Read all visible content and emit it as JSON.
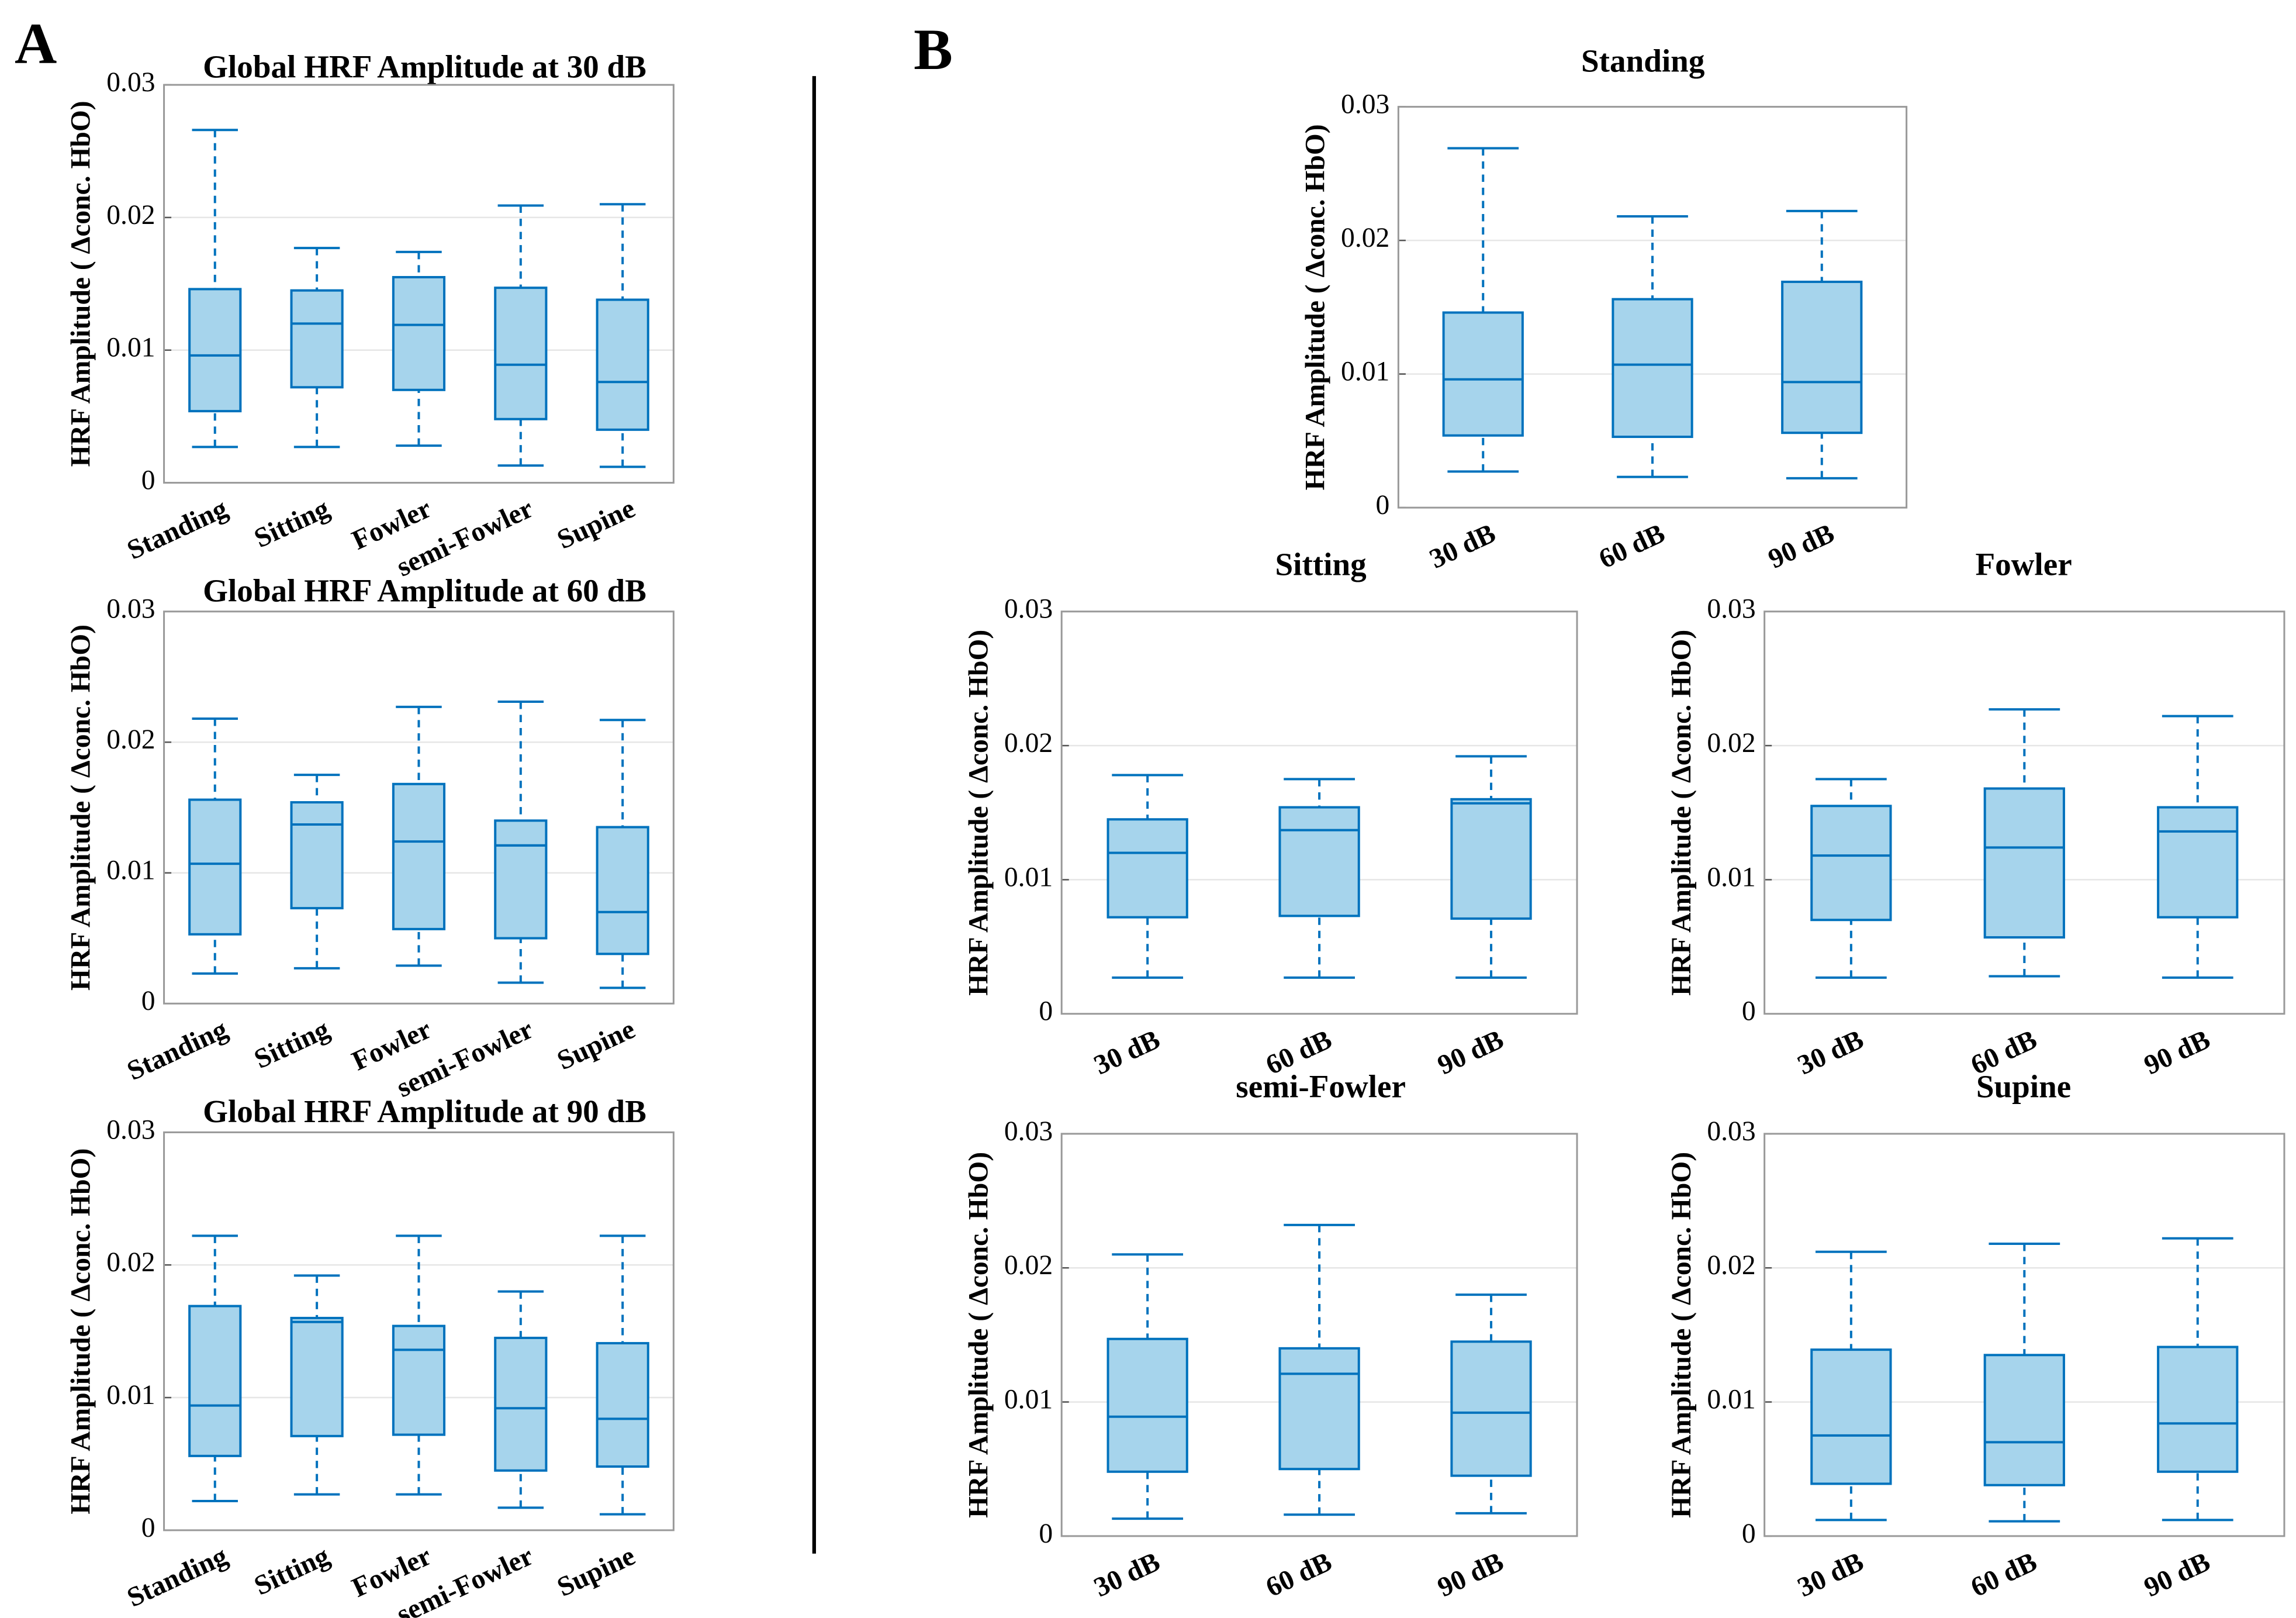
{
  "panels": [
    "A",
    "B"
  ],
  "chart_data": [
    {
      "type": "box",
      "title": "Global HRF Amplitude at 30 dB",
      "ylabel": "HRF Amplitude ( Δconc. HbO)",
      "categories": [
        "Standing",
        "Sitting",
        "Fowler",
        "semi-Fowler",
        "Supine"
      ],
      "boxes": [
        {
          "min": 0.0027,
          "q1": 0.0054,
          "median": 0.0096,
          "q3": 0.0146,
          "max": 0.0266
        },
        {
          "min": 0.0027,
          "q1": 0.0072,
          "median": 0.012,
          "q3": 0.0145,
          "max": 0.0177
        },
        {
          "min": 0.0028,
          "q1": 0.007,
          "median": 0.0119,
          "q3": 0.0155,
          "max": 0.0174
        },
        {
          "min": 0.0013,
          "q1": 0.0048,
          "median": 0.0089,
          "q3": 0.0147,
          "max": 0.0209
        },
        {
          "min": 0.0012,
          "q1": 0.004,
          "median": 0.0076,
          "q3": 0.0138,
          "max": 0.021
        }
      ],
      "color": "#0072bd",
      "fill": "#a6d4ec",
      "ylim": [
        0,
        0.03
      ],
      "yticks": [
        0,
        0.01,
        0.02,
        0.03
      ],
      "grid": true
    },
    {
      "type": "box",
      "title": "Global HRF Amplitude at 60 dB",
      "ylabel": "HRF Amplitude ( Δconc. HbO)",
      "categories": [
        "Standing",
        "Sitting",
        "Fowler",
        "semi-Fowler",
        "Supine"
      ],
      "boxes": [
        {
          "min": 0.0023,
          "q1": 0.0053,
          "median": 0.0107,
          "q3": 0.0156,
          "max": 0.0218
        },
        {
          "min": 0.0027,
          "q1": 0.0073,
          "median": 0.0137,
          "q3": 0.0154,
          "max": 0.0175
        },
        {
          "min": 0.0029,
          "q1": 0.0057,
          "median": 0.0124,
          "q3": 0.0168,
          "max": 0.0227
        },
        {
          "min": 0.0016,
          "q1": 0.005,
          "median": 0.0121,
          "q3": 0.014,
          "max": 0.0231
        },
        {
          "min": 0.0012,
          "q1": 0.0038,
          "median": 0.007,
          "q3": 0.0135,
          "max": 0.0217
        }
      ],
      "color": "#0072bd",
      "fill": "#a6d4ec",
      "ylim": [
        0,
        0.03
      ],
      "yticks": [
        0,
        0.01,
        0.02,
        0.03
      ],
      "grid": true
    },
    {
      "type": "box",
      "title": "Global HRF Amplitude at 90 dB",
      "ylabel": "HRF Amplitude ( Δconc. HbO)",
      "categories": [
        "Standing",
        "Sitting",
        "Fowler",
        "semi-Fowler",
        "Supine"
      ],
      "boxes": [
        {
          "min": 0.0022,
          "q1": 0.0056,
          "median": 0.0094,
          "q3": 0.0169,
          "max": 0.0222
        },
        {
          "min": 0.0027,
          "q1": 0.0071,
          "median": 0.0157,
          "q3": 0.016,
          "max": 0.0192
        },
        {
          "min": 0.0027,
          "q1": 0.0072,
          "median": 0.0136,
          "q3": 0.0154,
          "max": 0.0222
        },
        {
          "min": 0.0017,
          "q1": 0.0045,
          "median": 0.0092,
          "q3": 0.0145,
          "max": 0.018
        },
        {
          "min": 0.0012,
          "q1": 0.0048,
          "median": 0.0084,
          "q3": 0.0141,
          "max": 0.0222
        }
      ],
      "color": "#0072bd",
      "fill": "#a6d4ec",
      "ylim": [
        0,
        0.03
      ],
      "yticks": [
        0,
        0.01,
        0.02,
        0.03
      ],
      "grid": true
    },
    {
      "type": "box",
      "title": "Standing",
      "ylabel": "HRF Amplitude ( Δconc. HbO)",
      "categories": [
        "30 dB",
        "60 dB",
        "90 dB"
      ],
      "boxes": [
        {
          "min": 0.0027,
          "q1": 0.0054,
          "median": 0.0096,
          "q3": 0.0146,
          "max": 0.0269
        },
        {
          "min": 0.0023,
          "q1": 0.0053,
          "median": 0.0107,
          "q3": 0.0156,
          "max": 0.0218
        },
        {
          "min": 0.0022,
          "q1": 0.0056,
          "median": 0.0094,
          "q3": 0.0169,
          "max": 0.0222
        }
      ],
      "color": "#0072bd",
      "fill": "#a6d4ec",
      "ylim": [
        0,
        0.03
      ],
      "yticks": [
        0,
        0.01,
        0.02,
        0.03
      ],
      "grid": true
    },
    {
      "type": "box",
      "title": "Sitting",
      "ylabel": "HRF Amplitude ( Δconc. HbO)",
      "categories": [
        "30 dB",
        "60 dB",
        "90 dB"
      ],
      "boxes": [
        {
          "min": 0.0027,
          "q1": 0.0072,
          "median": 0.012,
          "q3": 0.0145,
          "max": 0.0178
        },
        {
          "min": 0.0027,
          "q1": 0.0073,
          "median": 0.0137,
          "q3": 0.0154,
          "max": 0.0175
        },
        {
          "min": 0.0027,
          "q1": 0.0071,
          "median": 0.0157,
          "q3": 0.016,
          "max": 0.0192
        }
      ],
      "color": "#0072bd",
      "fill": "#a6d4ec",
      "ylim": [
        0,
        0.03
      ],
      "yticks": [
        0,
        0.01,
        0.02,
        0.03
      ],
      "grid": true
    },
    {
      "type": "box",
      "title": "Fowler",
      "ylabel": "HRF Amplitude ( Δconc. HbO)",
      "categories": [
        "30 dB",
        "60 dB",
        "90 dB"
      ],
      "boxes": [
        {
          "min": 0.0027,
          "q1": 0.007,
          "median": 0.0118,
          "q3": 0.0155,
          "max": 0.0175
        },
        {
          "min": 0.0028,
          "q1": 0.0057,
          "median": 0.0124,
          "q3": 0.0168,
          "max": 0.0227
        },
        {
          "min": 0.0027,
          "q1": 0.0072,
          "median": 0.0136,
          "q3": 0.0154,
          "max": 0.0222
        }
      ],
      "color": "#0072bd",
      "fill": "#a6d4ec",
      "ylim": [
        0,
        0.03
      ],
      "yticks": [
        0,
        0.01,
        0.02,
        0.03
      ],
      "grid": true
    },
    {
      "type": "box",
      "title": "semi-Fowler",
      "ylabel": "HRF Amplitude ( Δconc. HbO)",
      "categories": [
        "30 dB",
        "60 dB",
        "90 dB"
      ],
      "boxes": [
        {
          "min": 0.0013,
          "q1": 0.0048,
          "median": 0.0089,
          "q3": 0.0147,
          "max": 0.021
        },
        {
          "min": 0.0016,
          "q1": 0.005,
          "median": 0.0121,
          "q3": 0.014,
          "max": 0.0232
        },
        {
          "min": 0.0017,
          "q1": 0.0045,
          "median": 0.0092,
          "q3": 0.0145,
          "max": 0.018
        }
      ],
      "color": "#0072bd",
      "fill": "#a6d4ec",
      "ylim": [
        0,
        0.03
      ],
      "yticks": [
        0,
        0.01,
        0.02,
        0.03
      ],
      "grid": true
    },
    {
      "type": "box",
      "title": "Supine",
      "ylabel": "HRF Amplitude ( Δconc. HbO)",
      "categories": [
        "30 dB",
        "60 dB",
        "90 dB"
      ],
      "boxes": [
        {
          "min": 0.0012,
          "q1": 0.0039,
          "median": 0.0075,
          "q3": 0.0139,
          "max": 0.0212
        },
        {
          "min": 0.0011,
          "q1": 0.0038,
          "median": 0.007,
          "q3": 0.0135,
          "max": 0.0218
        },
        {
          "min": 0.0012,
          "q1": 0.0048,
          "median": 0.0084,
          "q3": 0.0141,
          "max": 0.0222
        }
      ],
      "color": "#0072bd",
      "fill": "#a6d4ec",
      "ylim": [
        0,
        0.03
      ],
      "yticks": [
        0,
        0.01,
        0.02,
        0.03
      ],
      "grid": true
    }
  ]
}
